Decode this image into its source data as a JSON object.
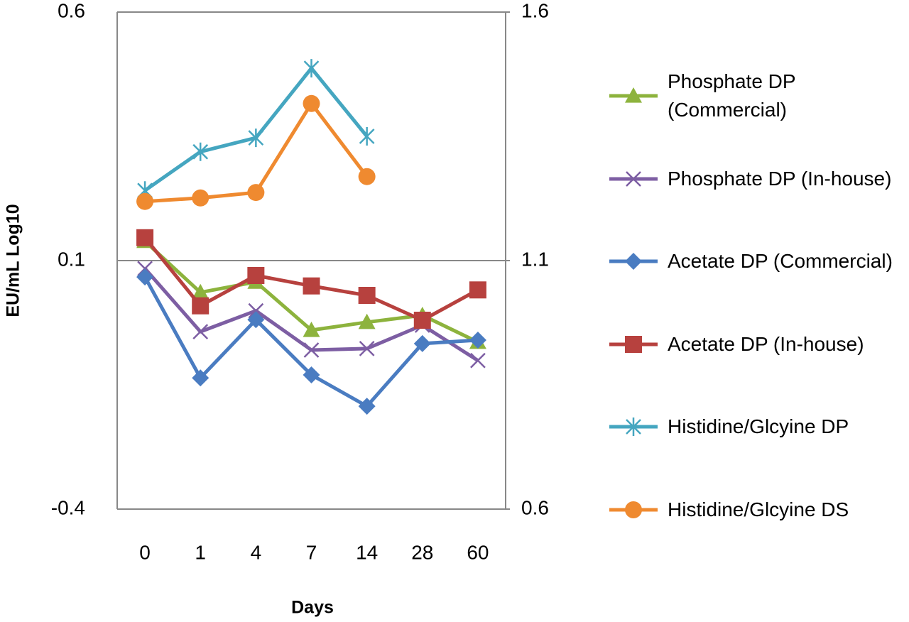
{
  "chart_data": {
    "type": "line",
    "xlabel": "Days",
    "ylabel": "EU/mL Log10",
    "categories": [
      "0",
      "1",
      "4",
      "7",
      "14",
      "28",
      "60"
    ],
    "ylim": [
      -0.4,
      0.6
    ],
    "yticks": [
      -0.4,
      0.1,
      0.6
    ],
    "y2lim": [
      0.6,
      1.6
    ],
    "y2ticks": [
      0.6,
      1.1,
      1.6
    ],
    "grid": true,
    "legend": "right",
    "series": [
      {
        "name": "Phosphate DP (Commercial)",
        "color": "#8db33d",
        "marker": "triangle",
        "values": [
          0.139,
          0.036,
          0.057,
          -0.04,
          -0.024,
          -0.01,
          -0.064
        ]
      },
      {
        "name": "Phosphate DP (In-house)",
        "color": "#7d5ea3",
        "marker": "x",
        "values": [
          0.084,
          -0.043,
          -0.001,
          -0.08,
          -0.077,
          -0.03,
          -0.101
        ]
      },
      {
        "name": "Acetate DP (Commercial)",
        "color": "#4a7cc1",
        "marker": "diamond",
        "values": [
          0.067,
          -0.136,
          -0.019,
          -0.13,
          -0.193,
          -0.067,
          -0.06
        ]
      },
      {
        "name": "Acetate DP (In-house)",
        "color": "#b7413e",
        "marker": "square",
        "values": [
          0.146,
          0.009,
          0.07,
          0.049,
          0.03,
          -0.02,
          0.041
        ]
      },
      {
        "name": "Histidine/Glcyine DP",
        "color": "#45a6c0",
        "marker": "star",
        "axis": "y2",
        "values": [
          1.241,
          1.319,
          1.347,
          1.487,
          1.35,
          null,
          null
        ]
      },
      {
        "name": "Histidine/Glcyine DS",
        "color": "#ef8a30",
        "marker": "circle",
        "axis": "y2",
        "values": [
          1.219,
          1.226,
          1.237,
          1.416,
          1.269,
          null,
          null
        ]
      }
    ]
  }
}
